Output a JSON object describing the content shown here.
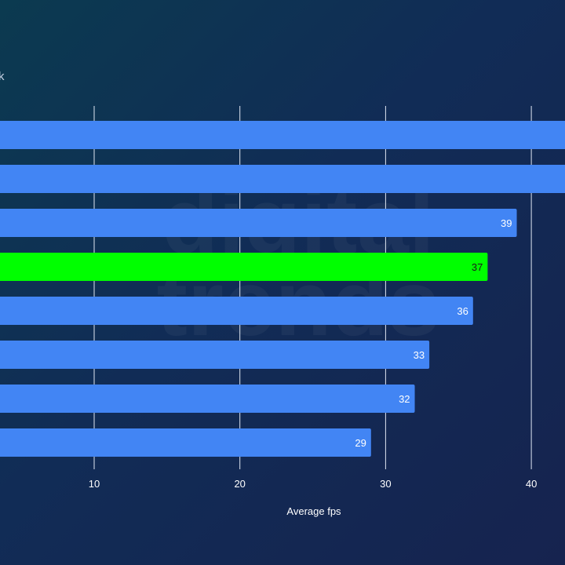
{
  "chart_data": {
    "type": "bar",
    "orientation": "horizontal",
    "subtitle": "k",
    "xlabel": "Average fps",
    "xticks": [
      10,
      20,
      30,
      40
    ],
    "xlim": [
      3.5,
      42.2
    ],
    "grid": true,
    "values": [
      44,
      44,
      39,
      37,
      36,
      33,
      32,
      29
    ],
    "value_labels": [
      "",
      "",
      "39",
      "37",
      "36",
      "33",
      "32",
      "29"
    ],
    "highlight_index": 3,
    "colors": {
      "bar": "#4285f4",
      "highlight": "#00ff00",
      "grid": "#dfe6f2",
      "label_on_bar": "#ffffff",
      "label_on_highlight": "#1a1a1a",
      "tick_label": "#ffffff"
    }
  },
  "watermark": {
    "lines": [
      "digital",
      "trends"
    ]
  }
}
